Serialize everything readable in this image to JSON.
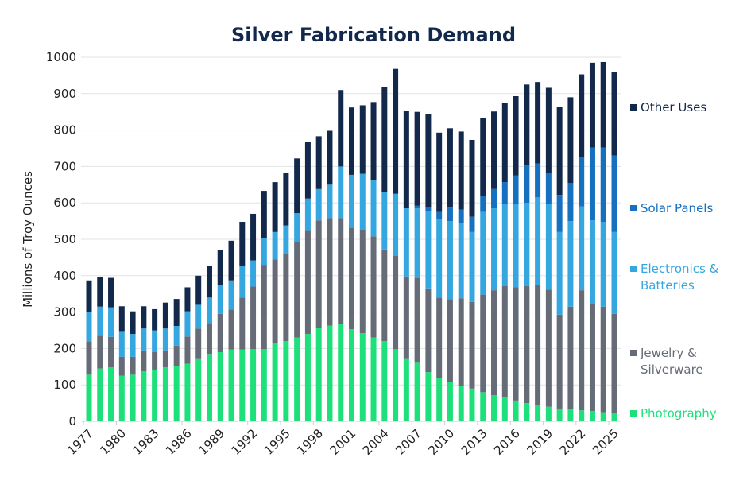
{
  "chart_data": {
    "type": "bar",
    "stacked": true,
    "title": "Silver Fabrication Demand",
    "xlabel": "",
    "ylabel": "Millions of Troy Ounces",
    "ylim": [
      0,
      1000
    ],
    "yticks": [
      0,
      100,
      200,
      300,
      400,
      500,
      600,
      700,
      800,
      900,
      1000
    ],
    "xtick_labels": [
      "1977",
      "1980",
      "1983",
      "1986",
      "1989",
      "1992",
      "1995",
      "1998",
      "2001",
      "2004",
      "2007",
      "2010",
      "2013",
      "2016",
      "2019",
      "2022",
      "2025"
    ],
    "grid": "horizontal",
    "legend_placement": "right",
    "categories": [
      1977,
      1978,
      1979,
      1980,
      1981,
      1982,
      1983,
      1984,
      1985,
      1986,
      1987,
      1988,
      1989,
      1990,
      1991,
      1992,
      1993,
      1994,
      1995,
      1996,
      1997,
      1998,
      1999,
      2000,
      2001,
      2002,
      2003,
      2004,
      2005,
      2006,
      2007,
      2008,
      2009,
      2010,
      2011,
      2012,
      2013,
      2014,
      2015,
      2016,
      2017,
      2018,
      2019,
      2020,
      2021,
      2022,
      2023,
      2024,
      2025
    ],
    "series": [
      {
        "name": "Photography",
        "legend_lines": [
          "Photography"
        ],
        "color": "#1ee07a",
        "values": [
          128,
          145,
          148,
          125,
          128,
          137,
          142,
          148,
          152,
          158,
          173,
          185,
          190,
          197,
          197,
          198,
          198,
          215,
          220,
          230,
          240,
          257,
          263,
          268,
          253,
          242,
          230,
          220,
          198,
          173,
          163,
          135,
          120,
          108,
          98,
          90,
          80,
          72,
          65,
          57,
          50,
          45,
          40,
          35,
          33,
          30,
          28,
          25,
          22
        ]
      },
      {
        "name": "Jewelry & Silverware",
        "legend_lines": [
          "Jewelry &",
          "Silverware"
        ],
        "color": "#666b78",
        "values": [
          92,
          90,
          84,
          52,
          49,
          58,
          48,
          47,
          56,
          75,
          82,
          85,
          105,
          110,
          143,
          172,
          232,
          230,
          240,
          263,
          285,
          295,
          295,
          290,
          279,
          285,
          278,
          252,
          257,
          225,
          230,
          230,
          220,
          227,
          240,
          238,
          268,
          288,
          307,
          311,
          322,
          330,
          322,
          258,
          282,
          330,
          294,
          290,
          273
        ]
      },
      {
        "name": "Electronics & Batteries",
        "legend_lines": [
          "Electronics &",
          "Batteries"
        ],
        "color": "#35a7e0",
        "values": [
          80,
          80,
          81,
          71,
          63,
          60,
          60,
          60,
          54,
          69,
          65,
          70,
          78,
          80,
          88,
          72,
          73,
          75,
          78,
          79,
          87,
          86,
          92,
          142,
          145,
          153,
          155,
          158,
          170,
          187,
          192,
          212,
          215,
          215,
          207,
          192,
          227,
          225,
          226,
          230,
          228,
          240,
          236,
          227,
          235,
          230,
          230,
          233,
          225
        ]
      },
      {
        "name": "Solar Panels",
        "legend_lines": [
          "Solar Panels"
        ],
        "color": "#1570bf",
        "values": [
          0,
          0,
          0,
          0,
          0,
          0,
          0,
          0,
          0,
          0,
          0,
          0,
          0,
          0,
          0,
          0,
          0,
          0,
          0,
          0,
          0,
          0,
          0,
          0,
          0,
          0,
          0,
          0,
          0,
          0,
          7,
          11,
          20,
          37,
          37,
          42,
          43,
          53,
          59,
          77,
          103,
          93,
          84,
          102,
          105,
          135,
          200,
          204,
          210
        ]
      },
      {
        "name": "Other Uses",
        "legend_lines": [
          "Other Uses"
        ],
        "color": "#13294b",
        "values": [
          87,
          82,
          81,
          68,
          62,
          61,
          58,
          71,
          74,
          66,
          80,
          86,
          97,
          109,
          120,
          128,
          130,
          137,
          144,
          150,
          155,
          145,
          148,
          210,
          185,
          188,
          214,
          288,
          343,
          268,
          258,
          255,
          218,
          218,
          214,
          211,
          214,
          213,
          217,
          218,
          222,
          224,
          234,
          242,
          235,
          228,
          233,
          235,
          230
        ]
      }
    ]
  }
}
